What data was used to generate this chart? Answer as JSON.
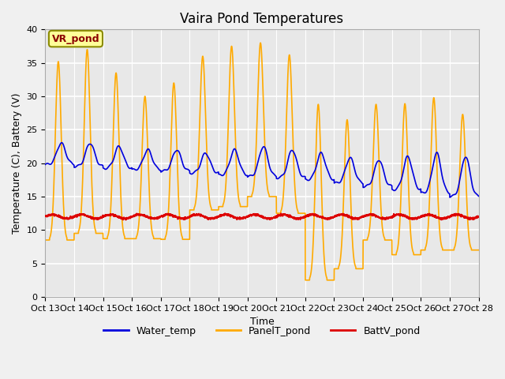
{
  "title": "Vaira Pond Temperatures",
  "xlabel": "Time",
  "ylabel": "Temperature (C), Battery (V)",
  "annotation": "VR_pond",
  "ylim": [
    0,
    40
  ],
  "yticks": [
    0,
    5,
    10,
    15,
    20,
    25,
    30,
    35,
    40
  ],
  "xtick_labels": [
    "Oct 13",
    "Oct 14",
    "Oct 15",
    "Oct 16",
    "Oct 17",
    "Oct 18",
    "Oct 19",
    "Oct 20",
    "Oct 21",
    "Oct 22",
    "Oct 23",
    "Oct 24",
    "Oct 25",
    "Oct 26",
    "Oct 27",
    "Oct 28"
  ],
  "water_color": "#0000dd",
  "panel_color": "#ffaa00",
  "batt_color": "#dd0000",
  "line_width": 1.2,
  "bg_color": "#e8e8e8",
  "fig_color": "#f0f0f0",
  "legend_labels": [
    "Water_temp",
    "PanelT_pond",
    "BattV_pond"
  ],
  "title_fontsize": 12,
  "axis_label_fontsize": 9,
  "tick_fontsize": 8,
  "panel_day_peaks": [
    35.2,
    37.0,
    33.5,
    30.0,
    32.0,
    36.0,
    37.5,
    38.0,
    36.2,
    28.8,
    26.5,
    28.8,
    28.9,
    29.8,
    27.3
  ],
  "panel_night_vals": [
    8.5,
    9.5,
    8.7,
    8.7,
    8.6,
    13.0,
    13.5,
    15.0,
    12.5,
    2.5,
    4.2,
    8.5,
    6.3,
    7.0,
    7.0
  ],
  "water_base": [
    19.8,
    19.5,
    19.2,
    19.0,
    18.8,
    18.5,
    18.2,
    18.0,
    17.8,
    17.5,
    17.0,
    16.5,
    16.0,
    15.5,
    15.0
  ],
  "water_peaks": [
    23.0,
    23.0,
    22.5,
    22.0,
    22.0,
    21.5,
    22.0,
    22.5,
    22.0,
    21.5,
    20.8,
    20.5,
    21.0,
    21.5,
    21.0
  ],
  "batt_base": 12.0,
  "batt_amplitude": 0.3
}
